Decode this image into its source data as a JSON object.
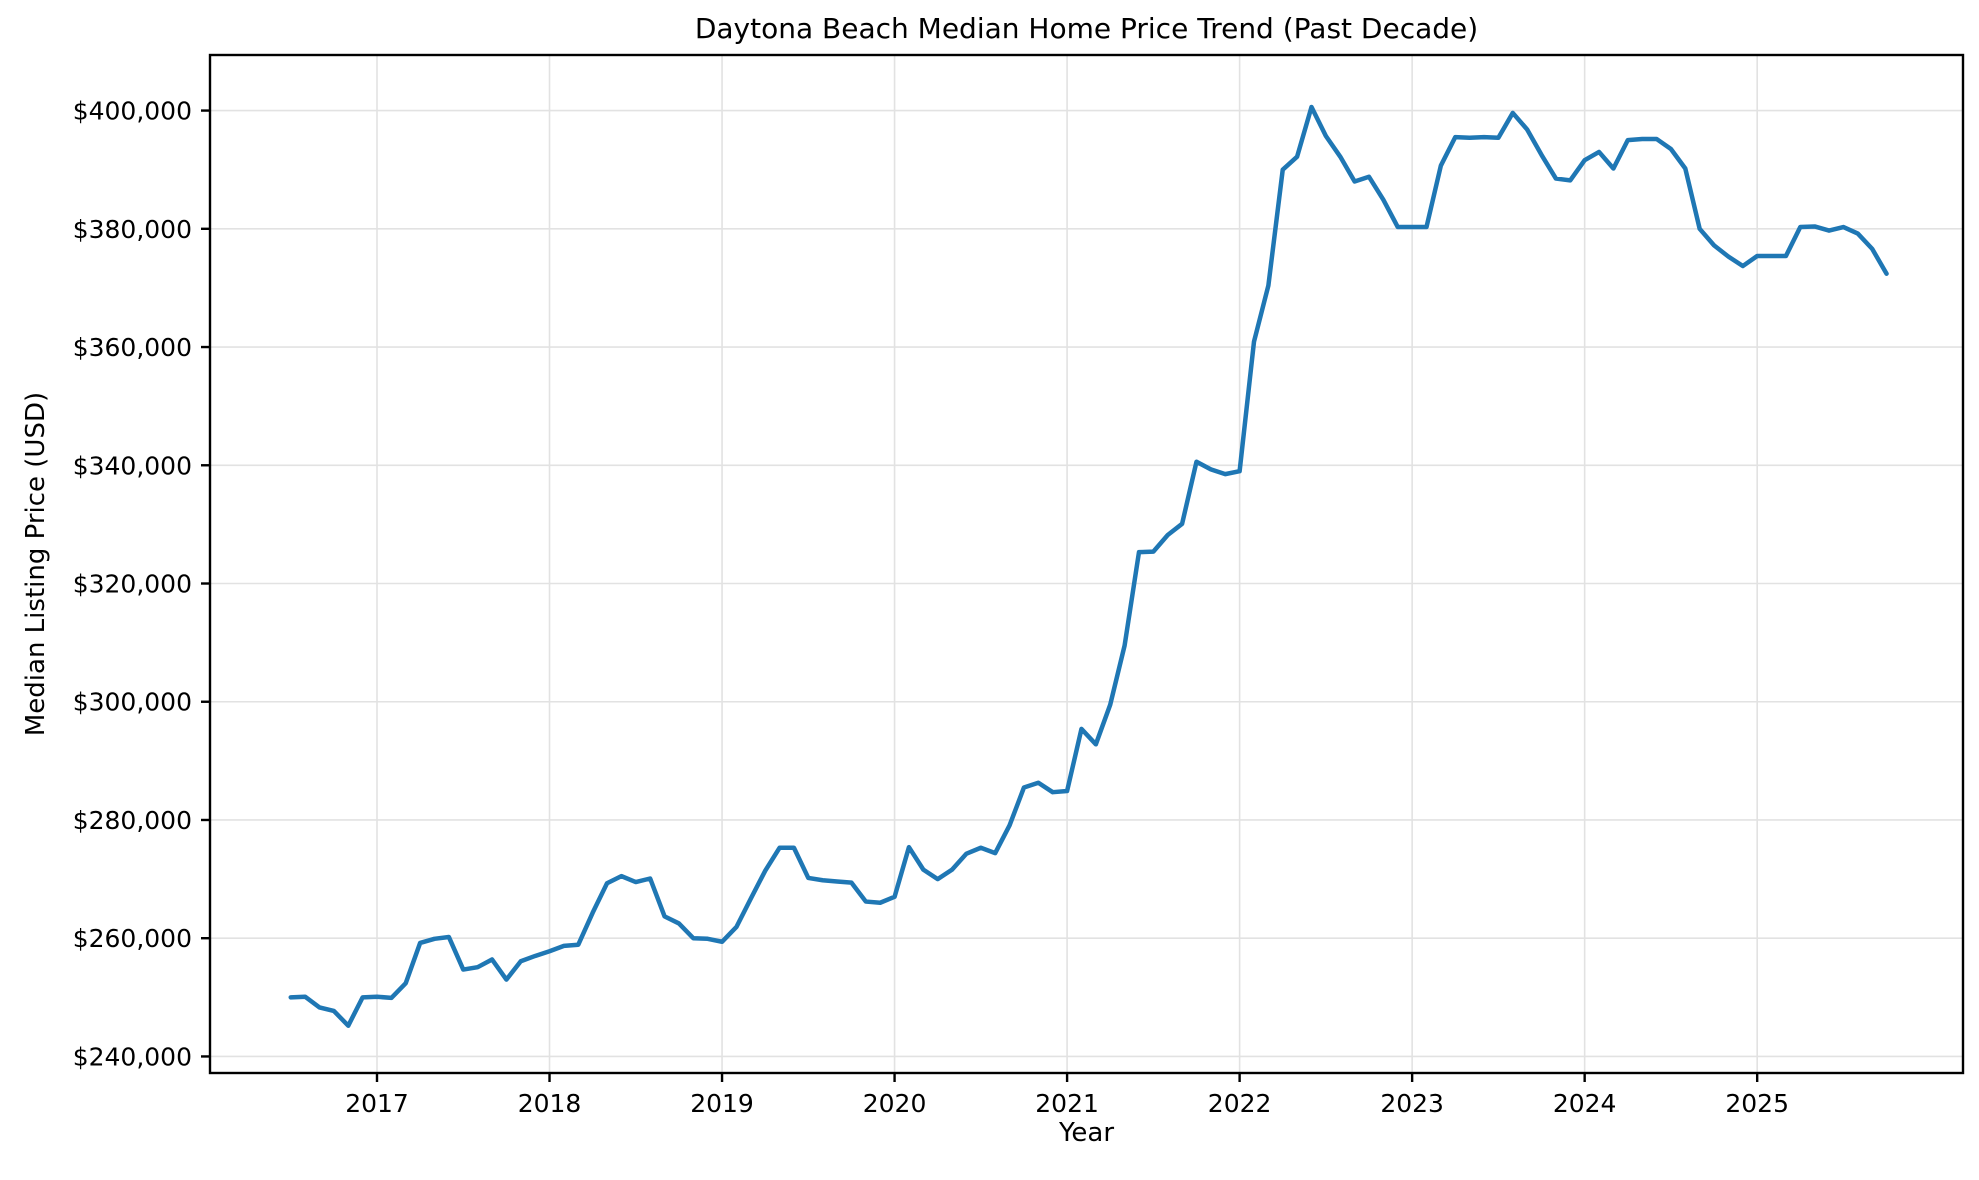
{
  "chart_data": {
    "type": "line",
    "title": "Daytona Beach Median Home Price Trend (Past Decade)",
    "xlabel": "Year",
    "ylabel": "Median Listing Price (USD)",
    "legend": "none",
    "grid": true,
    "background_color": "#ffffff",
    "grid_color": "#e2e2e2",
    "axis_color": "#000000",
    "line_color": "#1f77b4",
    "x_frequency": "monthly",
    "x": [
      "2016-07",
      "2016-08",
      "2016-09",
      "2016-10",
      "2016-11",
      "2016-12",
      "2017-01",
      "2017-02",
      "2017-03",
      "2017-04",
      "2017-05",
      "2017-06",
      "2017-07",
      "2017-08",
      "2017-09",
      "2017-10",
      "2017-11",
      "2017-12",
      "2018-01",
      "2018-02",
      "2018-03",
      "2018-04",
      "2018-05",
      "2018-06",
      "2018-07",
      "2018-08",
      "2018-09",
      "2018-10",
      "2018-11",
      "2018-12",
      "2019-01",
      "2019-02",
      "2019-03",
      "2019-04",
      "2019-05",
      "2019-06",
      "2019-07",
      "2019-08",
      "2019-09",
      "2019-10",
      "2019-11",
      "2019-12",
      "2020-01",
      "2020-02",
      "2020-03",
      "2020-04",
      "2020-05",
      "2020-06",
      "2020-07",
      "2020-08",
      "2020-09",
      "2020-10",
      "2020-11",
      "2020-12",
      "2021-01",
      "2021-02",
      "2021-03",
      "2021-04",
      "2021-05",
      "2021-06",
      "2021-07",
      "2021-08",
      "2021-09",
      "2021-10",
      "2021-11",
      "2021-12",
      "2022-01",
      "2022-02",
      "2022-03",
      "2022-04",
      "2022-05",
      "2022-06",
      "2022-07",
      "2022-08",
      "2022-09",
      "2022-10",
      "2022-11",
      "2022-12",
      "2023-01",
      "2023-02",
      "2023-03",
      "2023-04",
      "2023-05",
      "2023-06",
      "2023-07",
      "2023-08",
      "2023-09",
      "2023-10",
      "2023-11",
      "2023-12",
      "2024-01",
      "2024-02",
      "2024-03",
      "2024-04",
      "2024-05",
      "2024-06",
      "2024-07",
      "2024-08",
      "2024-09",
      "2024-10",
      "2024-11",
      "2024-12",
      "2025-01",
      "2025-02",
      "2025-03",
      "2025-04",
      "2025-05",
      "2025-06",
      "2025-07",
      "2025-08",
      "2025-09",
      "2025-10"
    ],
    "values": [
      250000,
      250100,
      248300,
      247700,
      245200,
      250000,
      250100,
      249900,
      252400,
      259200,
      259900,
      260200,
      254700,
      255100,
      256400,
      253000,
      256100,
      257000,
      257800,
      258700,
      258900,
      264300,
      269300,
      270500,
      269500,
      270100,
      263700,
      262500,
      260000,
      259900,
      259400,
      261900,
      266700,
      271400,
      275300,
      275300,
      270200,
      269800,
      269600,
      269400,
      266200,
      266000,
      267000,
      275400,
      271600,
      270000,
      271600,
      274300,
      275300,
      274400,
      279100,
      285500,
      286300,
      284700,
      284900,
      295400,
      292800,
      299500,
      309500,
      325300,
      325400,
      328200,
      330100,
      340600,
      339300,
      338500,
      339000,
      360900,
      370400,
      390000,
      392200,
      400600,
      395700,
      392200,
      388000,
      388800,
      384900,
      380300,
      380300,
      380300,
      390700,
      395500,
      395400,
      395500,
      395400,
      399600,
      396800,
      392500,
      388500,
      388200,
      391600,
      393000,
      390200,
      395000,
      395200,
      395200,
      393500,
      390200,
      380000,
      377200,
      375300,
      373700,
      375400,
      375400,
      375400,
      380300,
      380400,
      379700,
      380300,
      379200,
      376600,
      372400
    ],
    "y_ticks": [
      {
        "value": 240000,
        "label": "$240,000"
      },
      {
        "value": 260000,
        "label": "$260,000"
      },
      {
        "value": 280000,
        "label": "$280,000"
      },
      {
        "value": 300000,
        "label": "$300,000"
      },
      {
        "value": 320000,
        "label": "$320,000"
      },
      {
        "value": 340000,
        "label": "$340,000"
      },
      {
        "value": 360000,
        "label": "$360,000"
      },
      {
        "value": 380000,
        "label": "$380,000"
      },
      {
        "value": 400000,
        "label": "$400,000"
      }
    ],
    "x_ticks": [
      {
        "value": 2017,
        "label": "2017"
      },
      {
        "value": 2018,
        "label": "2018"
      },
      {
        "value": 2019,
        "label": "2019"
      },
      {
        "value": 2020,
        "label": "2020"
      },
      {
        "value": 2021,
        "label": "2021"
      },
      {
        "value": 2022,
        "label": "2022"
      },
      {
        "value": 2023,
        "label": "2023"
      },
      {
        "value": 2024,
        "label": "2024"
      },
      {
        "value": 2025,
        "label": "2025"
      }
    ],
    "xlim_years": [
      2016.032,
      2026.193
    ],
    "ylim": [
      237200,
      409400
    ]
  }
}
